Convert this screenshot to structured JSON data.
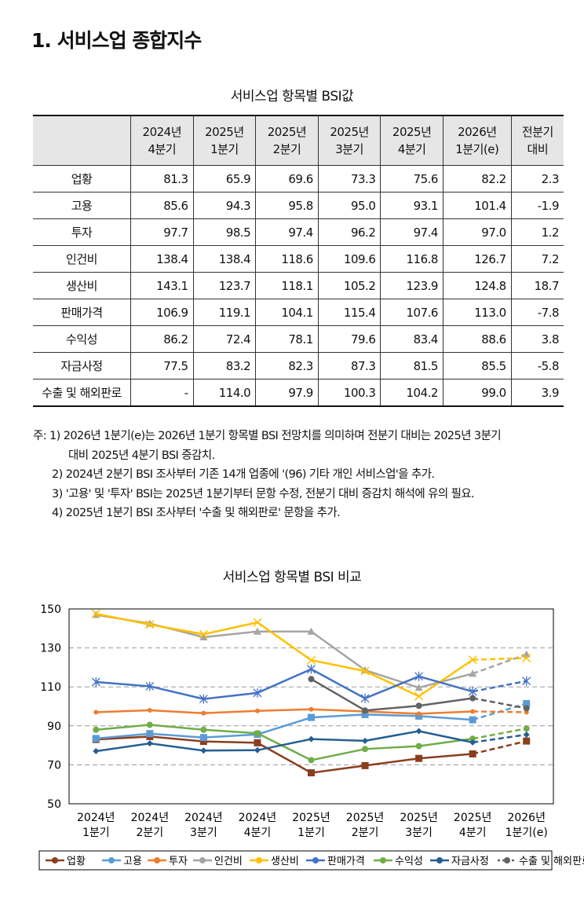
{
  "heading": "1. 서비스업 종합지수",
  "table": {
    "title": "서비스업 항목별 BSI값",
    "headers": [
      [
        "",
        ""
      ],
      [
        "2024년",
        "4분기"
      ],
      [
        "2025년",
        "1분기"
      ],
      [
        "2025년",
        "2분기"
      ],
      [
        "2025년",
        "3분기"
      ],
      [
        "2025년",
        "4분기"
      ],
      [
        "2026년",
        "1분기(e)"
      ],
      [
        "전분기",
        "대비"
      ]
    ],
    "rows": [
      [
        "업황",
        "81.3",
        "65.9",
        "69.6",
        "73.3",
        "75.6",
        "82.2",
        "2.3"
      ],
      [
        "고용",
        "85.6",
        "94.3",
        "95.8",
        "95.0",
        "93.1",
        "101.4",
        "-1.9"
      ],
      [
        "투자",
        "97.7",
        "98.5",
        "97.4",
        "96.2",
        "97.4",
        "97.0",
        "1.2"
      ],
      [
        "인건비",
        "138.4",
        "138.4",
        "118.6",
        "109.6",
        "116.8",
        "126.7",
        "7.2"
      ],
      [
        "생산비",
        "143.1",
        "123.7",
        "118.1",
        "105.2",
        "123.9",
        "124.8",
        "18.7"
      ],
      [
        "판매가격",
        "106.9",
        "119.1",
        "104.1",
        "115.4",
        "107.6",
        "113.0",
        "-7.8"
      ],
      [
        "수익성",
        "86.2",
        "72.4",
        "78.1",
        "79.6",
        "83.4",
        "88.6",
        "3.8"
      ],
      [
        "자금사정",
        "77.5",
        "83.2",
        "82.3",
        "87.3",
        "81.5",
        "85.5",
        "-5.8"
      ],
      [
        "수출 및 해외판로",
        "-",
        "114.0",
        "97.9",
        "100.3",
        "104.2",
        "99.0",
        "3.9"
      ]
    ]
  },
  "notes": [
    "주: 1) 2026년 1분기(e)는 2026년 1분기 항목별 BSI 전망치를 의미하며 전분기 대비는 2025년 3분기",
    "대비 2025년 4분기 BSI 증감치.",
    "2) 2024년 2분기 BSI 조사부터 기존 14개 업종에 '(96) 기타 개인 서비스업'을 추가.",
    "3) '고용' 및 '투자' BSI는 2025년 1분기부터 문항 수정, 전분기 대비 증감치 해석에 유의 필요.",
    "4) 2025년 1분기 BSI 조사부터 '수출 및 해외판로' 문항을 추가."
  ],
  "chart_data": {
    "type": "line",
    "title": "서비스업 항목별 BSI 비교",
    "categories": [
      [
        "2024년",
        "1분기"
      ],
      [
        "2024년",
        "2분기"
      ],
      [
        "2024년",
        "3분기"
      ],
      [
        "2024년",
        "4분기"
      ],
      [
        "2025년",
        "1분기"
      ],
      [
        "2025년",
        "2분기"
      ],
      [
        "2025년",
        "3분기"
      ],
      [
        "2025년",
        "4분기"
      ],
      [
        "2026년",
        "1분기(e)"
      ]
    ],
    "ylim": [
      50,
      150
    ],
    "yticks": [
      50,
      70,
      90,
      110,
      130,
      150
    ],
    "grid": true,
    "legend": "bottom",
    "forecast_dashed_last_segment": true,
    "series": [
      {
        "name": "업황",
        "color": "#8B3E1E",
        "marker": "square",
        "values": [
          83,
          84.5,
          82,
          81.3,
          65.9,
          69.6,
          73.3,
          75.6,
          82.2
        ]
      },
      {
        "name": "고용",
        "color": "#5B9BD5",
        "marker": "square",
        "values": [
          83.5,
          86,
          84,
          85.6,
          94.3,
          95.8,
          95.0,
          93.1,
          101.4
        ]
      },
      {
        "name": "투자",
        "color": "#ED7D31",
        "marker": "dash",
        "values": [
          97,
          98,
          96.5,
          97.7,
          98.5,
          97.4,
          96.2,
          97.4,
          97.0
        ]
      },
      {
        "name": "인건비",
        "color": "#A5A5A5",
        "marker": "triangle",
        "values": [
          147,
          142.5,
          135.5,
          138.4,
          138.4,
          118.6,
          109.6,
          116.8,
          126.7
        ]
      },
      {
        "name": "생산비",
        "color": "#FFC000",
        "marker": "x",
        "values": [
          147.5,
          142,
          137,
          143.1,
          123.7,
          118.1,
          105.2,
          123.9,
          124.8
        ]
      },
      {
        "name": "판매가격",
        "color": "#4472C4",
        "marker": "star",
        "values": [
          112.5,
          110.3,
          103.8,
          106.9,
          119.1,
          104.1,
          115.4,
          107.6,
          113.0
        ]
      },
      {
        "name": "수익성",
        "color": "#70AD47",
        "marker": "circle",
        "values": [
          88,
          90.5,
          88,
          86.2,
          72.4,
          78.1,
          79.6,
          83.4,
          88.6
        ]
      },
      {
        "name": "자금사정",
        "color": "#255E91",
        "marker": "diamond",
        "values": [
          77,
          81,
          77.3,
          77.5,
          83.2,
          82.3,
          87.3,
          81.5,
          85.5
        ]
      },
      {
        "name": "수출 및 해외판로",
        "color": "#636363",
        "marker": "circle",
        "values": [
          null,
          null,
          null,
          null,
          114.0,
          97.9,
          100.3,
          104.2,
          99.0
        ]
      }
    ]
  }
}
